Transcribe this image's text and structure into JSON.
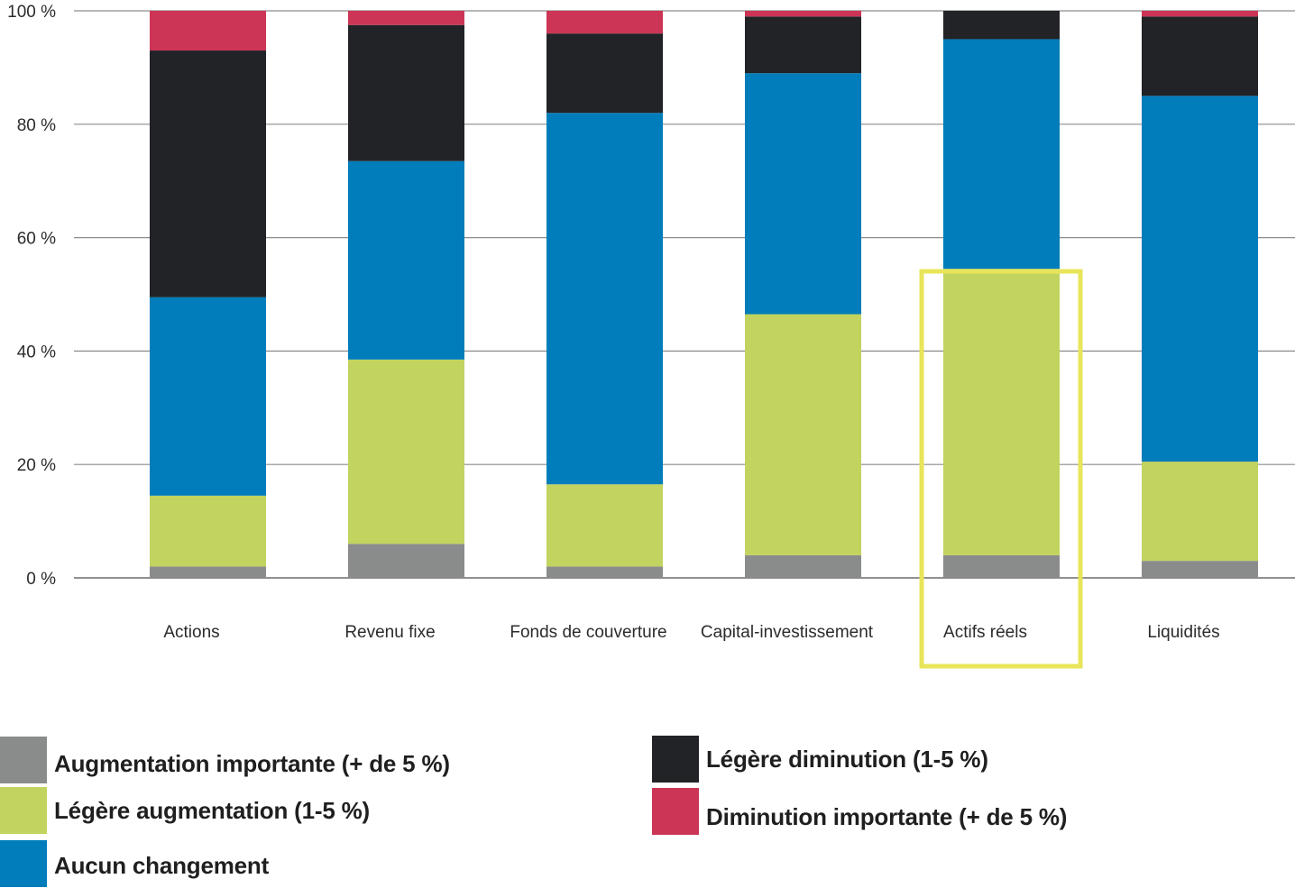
{
  "chart_data": {
    "type": "bar",
    "stacked": true,
    "categories": [
      "Actions",
      "Revenu fixe",
      "Fonds de couverture",
      "Capital-investissement",
      "Actifs réels",
      "Liquidités"
    ],
    "series": [
      {
        "name": "Augmentation importante (+ de 5 %)",
        "color": "#8a8c8c",
        "values": [
          2,
          6,
          2,
          4,
          4,
          3
        ]
      },
      {
        "name": "Légère augmentation (1-5 %)",
        "color": "#c2d35f",
        "values": [
          12.5,
          32.5,
          14.5,
          42.5,
          50.5,
          17.5
        ]
      },
      {
        "name": "Aucun changement",
        "color": "#007dba",
        "values": [
          35,
          35,
          65.5,
          42.5,
          40.5,
          64.5
        ]
      },
      {
        "name": "Légère diminution (1-5 %)",
        "color": "#212327",
        "values": [
          43.5,
          24,
          14,
          10,
          5,
          14
        ]
      },
      {
        "name": "Diminution importante (+ de 5 %)",
        "color": "#cc3555",
        "values": [
          7,
          2.5,
          4,
          1,
          0,
          1
        ]
      }
    ],
    "yticks": [
      "0 %",
      "20 %",
      "40 %",
      "60 %",
      "80 %",
      "100 %"
    ],
    "ytick_values": [
      0,
      20,
      40,
      60,
      80,
      100
    ],
    "ylim": [
      0,
      100
    ],
    "grid": true,
    "highlight": {
      "category": "Actifs réels",
      "color": "#e8e55a"
    },
    "title": "",
    "xlabel": "",
    "ylabel": ""
  },
  "legend": {
    "items": [
      {
        "label": "Augmentation importante (+ de 5 %)",
        "color": "#8a8c8c"
      },
      {
        "label": "Légère augmentation (1-5 %)",
        "color": "#c2d35f"
      },
      {
        "label": "Aucun changement",
        "color": "#007dba"
      },
      {
        "label": "Légère diminution (1-5 %)",
        "color": "#212327"
      },
      {
        "label": "Diminution importante (+ de 5 %)",
        "color": "#cc3555"
      }
    ]
  }
}
